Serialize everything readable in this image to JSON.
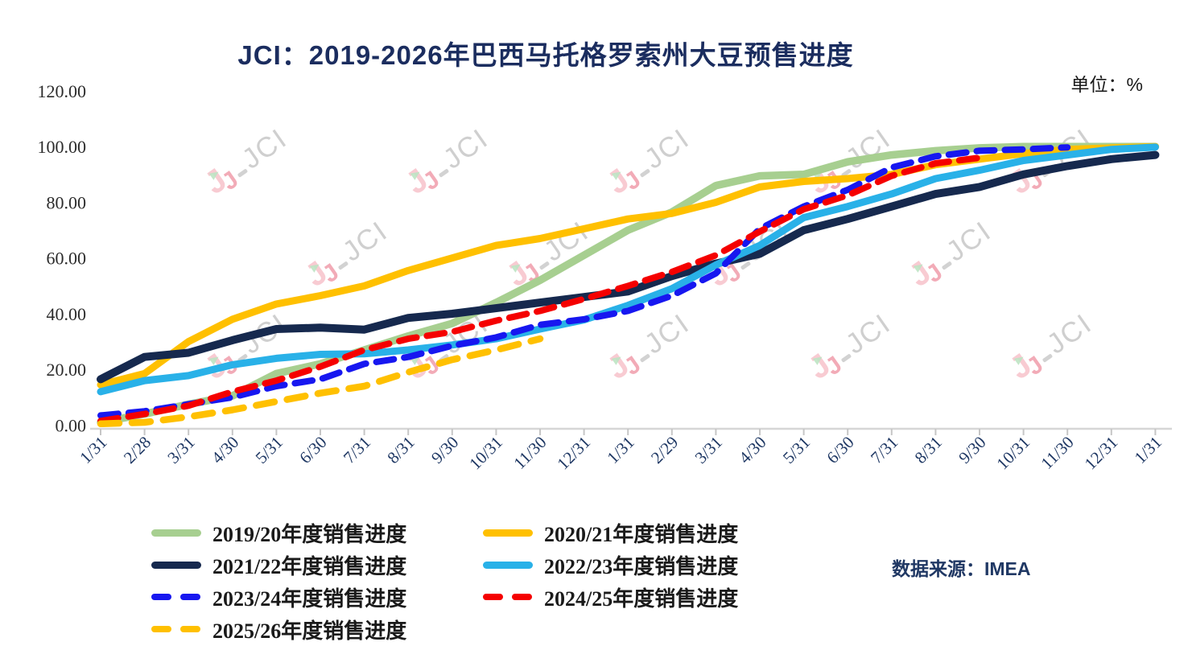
{
  "header": {
    "title": "JCI：2019-2026年巴西马托格罗索州大豆预售进度",
    "unit_label": "单位：%"
  },
  "source": {
    "label": "数据来源：IMEA"
  },
  "watermark": {
    "text": "JCI"
  },
  "chart_data": {
    "type": "line",
    "title": "JCI：2019-2026年巴西马托格罗索州大豆预售进度",
    "unit": "%",
    "xlabel": "",
    "ylabel": "",
    "ylim": [
      0,
      120
    ],
    "grid": false,
    "legend_position": "bottom-left-two-columns",
    "y_tick_labels": [
      "0.00",
      "20.00",
      "40.00",
      "60.00",
      "80.00",
      "100.00",
      "120.00"
    ],
    "categories": [
      "1/31",
      "2/28",
      "3/31",
      "4/30",
      "5/31",
      "6/30",
      "7/31",
      "8/31",
      "9/30",
      "10/31",
      "11/30",
      "12/31",
      "1/31",
      "2/29",
      "3/31",
      "4/30",
      "5/31",
      "6/30",
      "7/31",
      "8/31",
      "9/30",
      "10/31",
      "11/30",
      "12/31",
      "1/31"
    ],
    "series": [
      {
        "name": "2019/20年度销售进度",
        "color": "#A7CF90",
        "dash": false,
        "values": [
          1,
          4,
          7.5,
          10.5,
          18.5,
          22,
          27,
          32,
          36.5,
          44,
          52,
          61,
          70,
          76.5,
          86,
          89.5,
          90,
          94.5,
          97,
          98.5,
          99.5,
          100,
          100,
          100,
          100
        ]
      },
      {
        "name": "2020/21年度销售进度",
        "color": "#FFC000",
        "dash": false,
        "values": [
          14.5,
          18.5,
          30,
          38,
          43.5,
          46.5,
          50,
          55.5,
          60,
          64.5,
          67,
          70.5,
          74,
          76,
          80,
          85.5,
          87.5,
          88.5,
          90,
          93.5,
          95.5,
          97.5,
          99,
          99.5,
          100
        ]
      },
      {
        "name": "2021/22年度销售进度",
        "color": "#16294E",
        "dash": false,
        "values": [
          16.5,
          24.5,
          26,
          30.5,
          34.5,
          35,
          34.3,
          38.5,
          40,
          42,
          44,
          46,
          48,
          53.5,
          58,
          61.5,
          70,
          74,
          78.5,
          83,
          85.5,
          90,
          93,
          95.5,
          97
        ]
      },
      {
        "name": "2022/23年度销售进度",
        "color": "#29B1E8",
        "dash": false,
        "values": [
          12,
          16,
          17.8,
          21.7,
          24,
          25.4,
          25.6,
          27,
          28.8,
          31,
          34.5,
          37.8,
          43,
          49,
          57.5,
          64.5,
          74.5,
          78.5,
          83,
          88.5,
          91.5,
          95,
          97,
          99,
          99.8
        ]
      },
      {
        "name": "2023/24年度销售进度",
        "color": "#1717F0",
        "dash": true,
        "values": [
          3.5,
          5,
          7.5,
          10,
          14,
          16.5,
          22,
          24.5,
          28.5,
          31.5,
          36,
          38,
          41,
          46.5,
          54.5,
          70.5,
          78.5,
          84.5,
          92.5,
          96.5,
          98.5,
          99,
          99.7,
          null,
          null
        ]
      },
      {
        "name": "2024/25年度销售进度",
        "color": "#F50000",
        "dash": true,
        "values": [
          1.5,
          4,
          7,
          12,
          16,
          21,
          27,
          31,
          33.5,
          37.5,
          41,
          45.3,
          50,
          55,
          61,
          69.5,
          77.5,
          82.5,
          89.5,
          94,
          96,
          null,
          null,
          null,
          null
        ]
      },
      {
        "name": "2025/26年度销售进度",
        "color": "#FFC000",
        "dash": true,
        "values": [
          0.5,
          1,
          3,
          5.5,
          8.5,
          11.5,
          14,
          19,
          23.5,
          27,
          31,
          null,
          null,
          null,
          null,
          null,
          null,
          null,
          null,
          null,
          null,
          null,
          null,
          null,
          null
        ]
      }
    ]
  }
}
